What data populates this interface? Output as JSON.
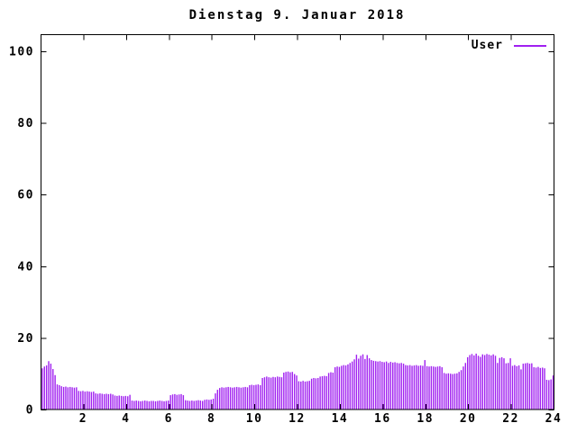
{
  "title": "Dienstag 9. Januar 2018",
  "legend": {
    "label": "User",
    "line_color": "#a020f0"
  },
  "colors": {
    "background": "#ffffff",
    "frame": "#000000",
    "text": "#000000",
    "bars": "#a020f0"
  },
  "chart_data": {
    "type": "bar",
    "title": "Dienstag 9. Januar 2018",
    "xlabel": "",
    "ylabel": "",
    "xlim": [
      0,
      24
    ],
    "ylim": [
      0,
      104.7
    ],
    "xticks": [
      2,
      4,
      6,
      8,
      10,
      12,
      14,
      16,
      18,
      20,
      22,
      24
    ],
    "yticks": [
      0,
      20,
      40,
      60,
      80,
      100
    ],
    "grid": false,
    "legend_position": "top-right",
    "x_unit": "hour_of_day",
    "x_start": 0,
    "x_step": 0.1,
    "series": [
      {
        "name": "User",
        "color": "#a020f0",
        "style": "impulses",
        "values": [
          11.5,
          12.0,
          12.3,
          13.5,
          12.8,
          11.3,
          9.6,
          7.0,
          6.8,
          6.5,
          6.3,
          6.4,
          6.2,
          6.3,
          6.2,
          6.1,
          6.2,
          5.2,
          5.1,
          5.2,
          5.0,
          5.1,
          5.0,
          4.9,
          5.0,
          4.5,
          4.4,
          4.5,
          4.4,
          4.3,
          4.4,
          4.3,
          4.4,
          4.2,
          3.9,
          3.8,
          3.9,
          3.8,
          3.7,
          3.8,
          3.7,
          4.1,
          2.5,
          2.4,
          2.5,
          2.4,
          2.3,
          2.4,
          2.5,
          2.4,
          2.3,
          2.4,
          2.4,
          2.3,
          2.4,
          2.5,
          2.4,
          2.3,
          2.4,
          2.5,
          4.0,
          4.2,
          4.3,
          4.1,
          4.2,
          4.3,
          4.0,
          2.6,
          2.5,
          2.4,
          2.5,
          2.4,
          2.5,
          2.6,
          2.5,
          2.4,
          2.7,
          2.8,
          2.7,
          2.8,
          3.0,
          4.5,
          5.5,
          6.0,
          6.2,
          6.1,
          6.2,
          6.3,
          6.2,
          6.1,
          6.2,
          6.3,
          6.2,
          6.1,
          6.2,
          6.3,
          6.2,
          6.8,
          6.9,
          6.8,
          6.9,
          7.0,
          6.8,
          8.8,
          9.0,
          9.2,
          9.0,
          8.9,
          9.1,
          9.0,
          9.2,
          9.1,
          9.0,
          10.3,
          10.5,
          10.6,
          10.4,
          10.5,
          9.9,
          9.5,
          7.9,
          7.8,
          8.0,
          7.8,
          7.9,
          8.0,
          8.6,
          8.8,
          8.7,
          8.8,
          9.2,
          9.3,
          9.4,
          9.3,
          10.2,
          10.4,
          10.3,
          11.8,
          12.0,
          11.9,
          12.2,
          12.4,
          12.3,
          12.6,
          13.0,
          13.4,
          14.0,
          15.3,
          14.2,
          15.0,
          15.4,
          14.1,
          15.2,
          14.3,
          13.8,
          13.6,
          13.5,
          13.4,
          13.5,
          13.3,
          13.2,
          13.4,
          13.0,
          13.3,
          13.1,
          13.2,
          13.0,
          12.9,
          13.0,
          12.8,
          12.4,
          12.3,
          12.4,
          12.2,
          12.3,
          12.4,
          12.2,
          12.3,
          12.2,
          13.8,
          12.1,
          12.0,
          12.1,
          12.0,
          11.9,
          12.0,
          12.1,
          11.8,
          10.2,
          10.0,
          10.1,
          10.0,
          9.9,
          10.0,
          10.1,
          10.5,
          11.0,
          12.0,
          13.0,
          14.6,
          15.2,
          15.5,
          15.1,
          15.6,
          15.0,
          14.7,
          15.4,
          15.2,
          15.5,
          15.3,
          15.1,
          15.4,
          15.0,
          13.0,
          14.4,
          14.6,
          14.3,
          12.9,
          13.0,
          14.3,
          12.2,
          12.4,
          12.1,
          12.3,
          11.2,
          12.8,
          12.9,
          13.0,
          12.8,
          12.9,
          11.8,
          11.7,
          11.9,
          11.6,
          11.7,
          11.5,
          8.3,
          8.2,
          8.4,
          9.5
        ]
      }
    ]
  }
}
